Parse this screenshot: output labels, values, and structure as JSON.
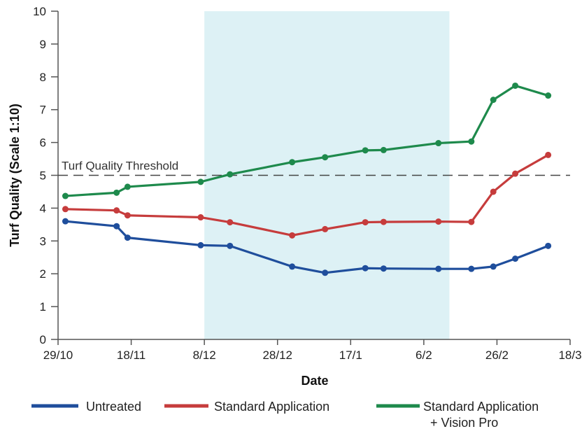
{
  "chart_data": {
    "type": "line",
    "xlabel": "Date",
    "ylabel": "Turf Quality (Scale 1:10)",
    "ylim": [
      0,
      10
    ],
    "yticks": [
      "0",
      "1",
      "2",
      "3",
      "4",
      "5",
      "6",
      "7",
      "8",
      "9",
      "10"
    ],
    "x_tick_labels": [
      "29/10",
      "18/11",
      "8/12",
      "28/12",
      "17/1",
      "6/2",
      "26/2",
      "18/3"
    ],
    "x_tick_days": [
      0,
      20,
      40,
      60,
      80,
      100,
      120,
      140
    ],
    "xlim": [
      0,
      140
    ],
    "shaded_region": [
      40,
      107
    ],
    "shade_color": "#ddf1f5",
    "threshold": {
      "label": "Turf Quality Threshold",
      "value": 5
    },
    "series": [
      {
        "name": "Untreated",
        "color": "#1f4e9c",
        "x": [
          2,
          16,
          19,
          39,
          47,
          64,
          73,
          84,
          89,
          104,
          113,
          119,
          125,
          134
        ],
        "y": [
          3.6,
          3.45,
          3.1,
          2.87,
          2.85,
          2.22,
          2.03,
          2.17,
          2.16,
          2.15,
          2.15,
          2.22,
          2.46,
          2.85
        ]
      },
      {
        "name": "Standard Application",
        "color": "#c63c3c",
        "x": [
          2,
          16,
          19,
          39,
          47,
          64,
          73,
          84,
          89,
          104,
          113,
          119,
          125,
          134
        ],
        "y": [
          3.97,
          3.93,
          3.78,
          3.72,
          3.57,
          3.17,
          3.36,
          3.57,
          3.58,
          3.59,
          3.58,
          4.5,
          5.05,
          5.62
        ]
      },
      {
        "name": "Standard Application\n+ Vision Pro",
        "color": "#1e8a4c",
        "x": [
          2,
          16,
          19,
          39,
          47,
          64,
          73,
          84,
          89,
          104,
          113,
          119,
          125,
          134
        ],
        "y": [
          4.37,
          4.47,
          4.65,
          4.8,
          5.03,
          5.4,
          5.55,
          5.76,
          5.77,
          5.98,
          6.03,
          7.3,
          7.73,
          7.43
        ]
      }
    ],
    "legend": {
      "position": "bottom",
      "items": [
        "Untreated",
        "Standard Application",
        "Standard Application",
        "+ Vision Pro"
      ]
    }
  }
}
